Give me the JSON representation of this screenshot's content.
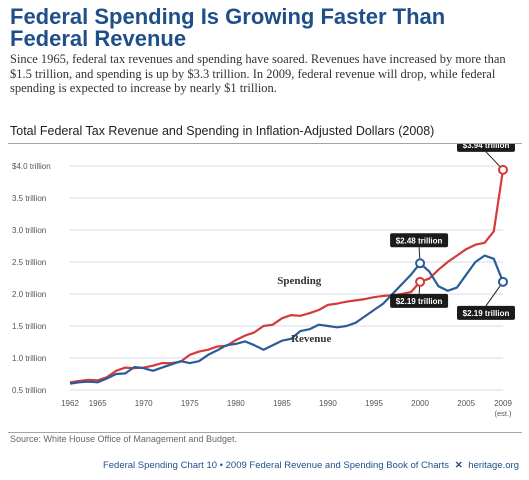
{
  "header": {
    "title": "Federal Spending Is Growing Faster Than Federal Revenue",
    "intro": "Since 1965, federal tax revenues and spending have soared. Revenues have increased by more than $1.5 trillion, and spending is up by $3.3 trillion. In 2009, federal revenue will drop, while federal spending is expected to increase by nearly $1 trillion."
  },
  "chart_data": {
    "type": "line",
    "title": "Total Federal Tax Revenue and Spending in Inflation-Adjusted Dollars (2008)",
    "xlabel": "",
    "ylabel": "",
    "x_tick_labels": [
      "1962",
      "1965",
      "1970",
      "1975",
      "1980",
      "1985",
      "1990",
      "1995",
      "2000",
      "2005",
      "2009"
    ],
    "x_tick_sublabel": "(est.)",
    "y_tick_labels": [
      "0.5 trillion",
      "1.0 trillion",
      "1.5 trillion",
      "2.0 trillion",
      "2.5 trillion",
      "3.0 trillion",
      "3.5 trillion",
      "$4.0 trillion"
    ],
    "ylim": [
      0.5,
      4.0
    ],
    "xlim": [
      1962,
      2009
    ],
    "grid": true,
    "colors": {
      "spending": "#d63a3a",
      "revenue": "#2a5c9a"
    },
    "series": [
      {
        "name": "Spending",
        "x": [
          1962,
          1963,
          1964,
          1965,
          1966,
          1967,
          1968,
          1969,
          1970,
          1971,
          1972,
          1973,
          1974,
          1975,
          1976,
          1977,
          1978,
          1979,
          1980,
          1981,
          1982,
          1983,
          1984,
          1985,
          1986,
          1987,
          1988,
          1989,
          1990,
          1991,
          1992,
          1993,
          1994,
          1995,
          1996,
          1997,
          1998,
          1999,
          2000,
          2001,
          2002,
          2003,
          2004,
          2005,
          2006,
          2007,
          2008,
          2009
        ],
        "values": [
          0.62,
          0.64,
          0.66,
          0.65,
          0.7,
          0.8,
          0.85,
          0.84,
          0.85,
          0.88,
          0.92,
          0.92,
          0.94,
          1.05,
          1.1,
          1.13,
          1.18,
          1.19,
          1.28,
          1.35,
          1.4,
          1.5,
          1.52,
          1.62,
          1.67,
          1.66,
          1.7,
          1.75,
          1.83,
          1.85,
          1.88,
          1.9,
          1.92,
          1.95,
          1.97,
          1.98,
          2.0,
          2.03,
          2.19,
          2.24,
          2.38,
          2.5,
          2.6,
          2.7,
          2.77,
          2.8,
          2.98,
          3.94
        ]
      },
      {
        "name": "Revenue",
        "x": [
          1962,
          1963,
          1964,
          1965,
          1966,
          1967,
          1968,
          1969,
          1970,
          1971,
          1972,
          1973,
          1974,
          1975,
          1976,
          1977,
          1978,
          1979,
          1980,
          1981,
          1982,
          1983,
          1984,
          1985,
          1986,
          1987,
          1988,
          1989,
          1990,
          1991,
          1992,
          1993,
          1994,
          1995,
          1996,
          1997,
          1998,
          1999,
          2000,
          2001,
          2002,
          2003,
          2004,
          2005,
          2006,
          2007,
          2008,
          2009
        ],
        "values": [
          0.6,
          0.62,
          0.63,
          0.62,
          0.68,
          0.75,
          0.76,
          0.86,
          0.84,
          0.8,
          0.85,
          0.9,
          0.95,
          0.92,
          0.95,
          1.05,
          1.12,
          1.2,
          1.22,
          1.26,
          1.2,
          1.13,
          1.2,
          1.27,
          1.3,
          1.42,
          1.45,
          1.52,
          1.5,
          1.48,
          1.5,
          1.55,
          1.65,
          1.75,
          1.85,
          2.0,
          2.15,
          2.3,
          2.48,
          2.35,
          2.12,
          2.05,
          2.1,
          2.3,
          2.5,
          2.6,
          2.55,
          2.19
        ]
      }
    ],
    "annotations": [
      {
        "label": "$3.94 trillion",
        "x": 2009,
        "y": 3.94,
        "series": "Spending"
      },
      {
        "label": "$2.48 trillion",
        "x": 2000,
        "y": 2.48,
        "series": "Revenue"
      },
      {
        "label": "$2.19 trillion",
        "x": 2000,
        "y": 2.19,
        "series": "Spending"
      },
      {
        "label": "$2.19 trillion",
        "x": 2009,
        "y": 2.19,
        "series": "Revenue"
      }
    ],
    "series_labels": [
      "Spending",
      "Revenue"
    ]
  },
  "source": "Source: White House Office of Management and Budget.",
  "footer": {
    "left": "Federal Spending Chart 10 • 2009 Federal Revenue and Spending Book of Charts",
    "icon": "heritage-bell-icon",
    "right": "heritage.org"
  }
}
